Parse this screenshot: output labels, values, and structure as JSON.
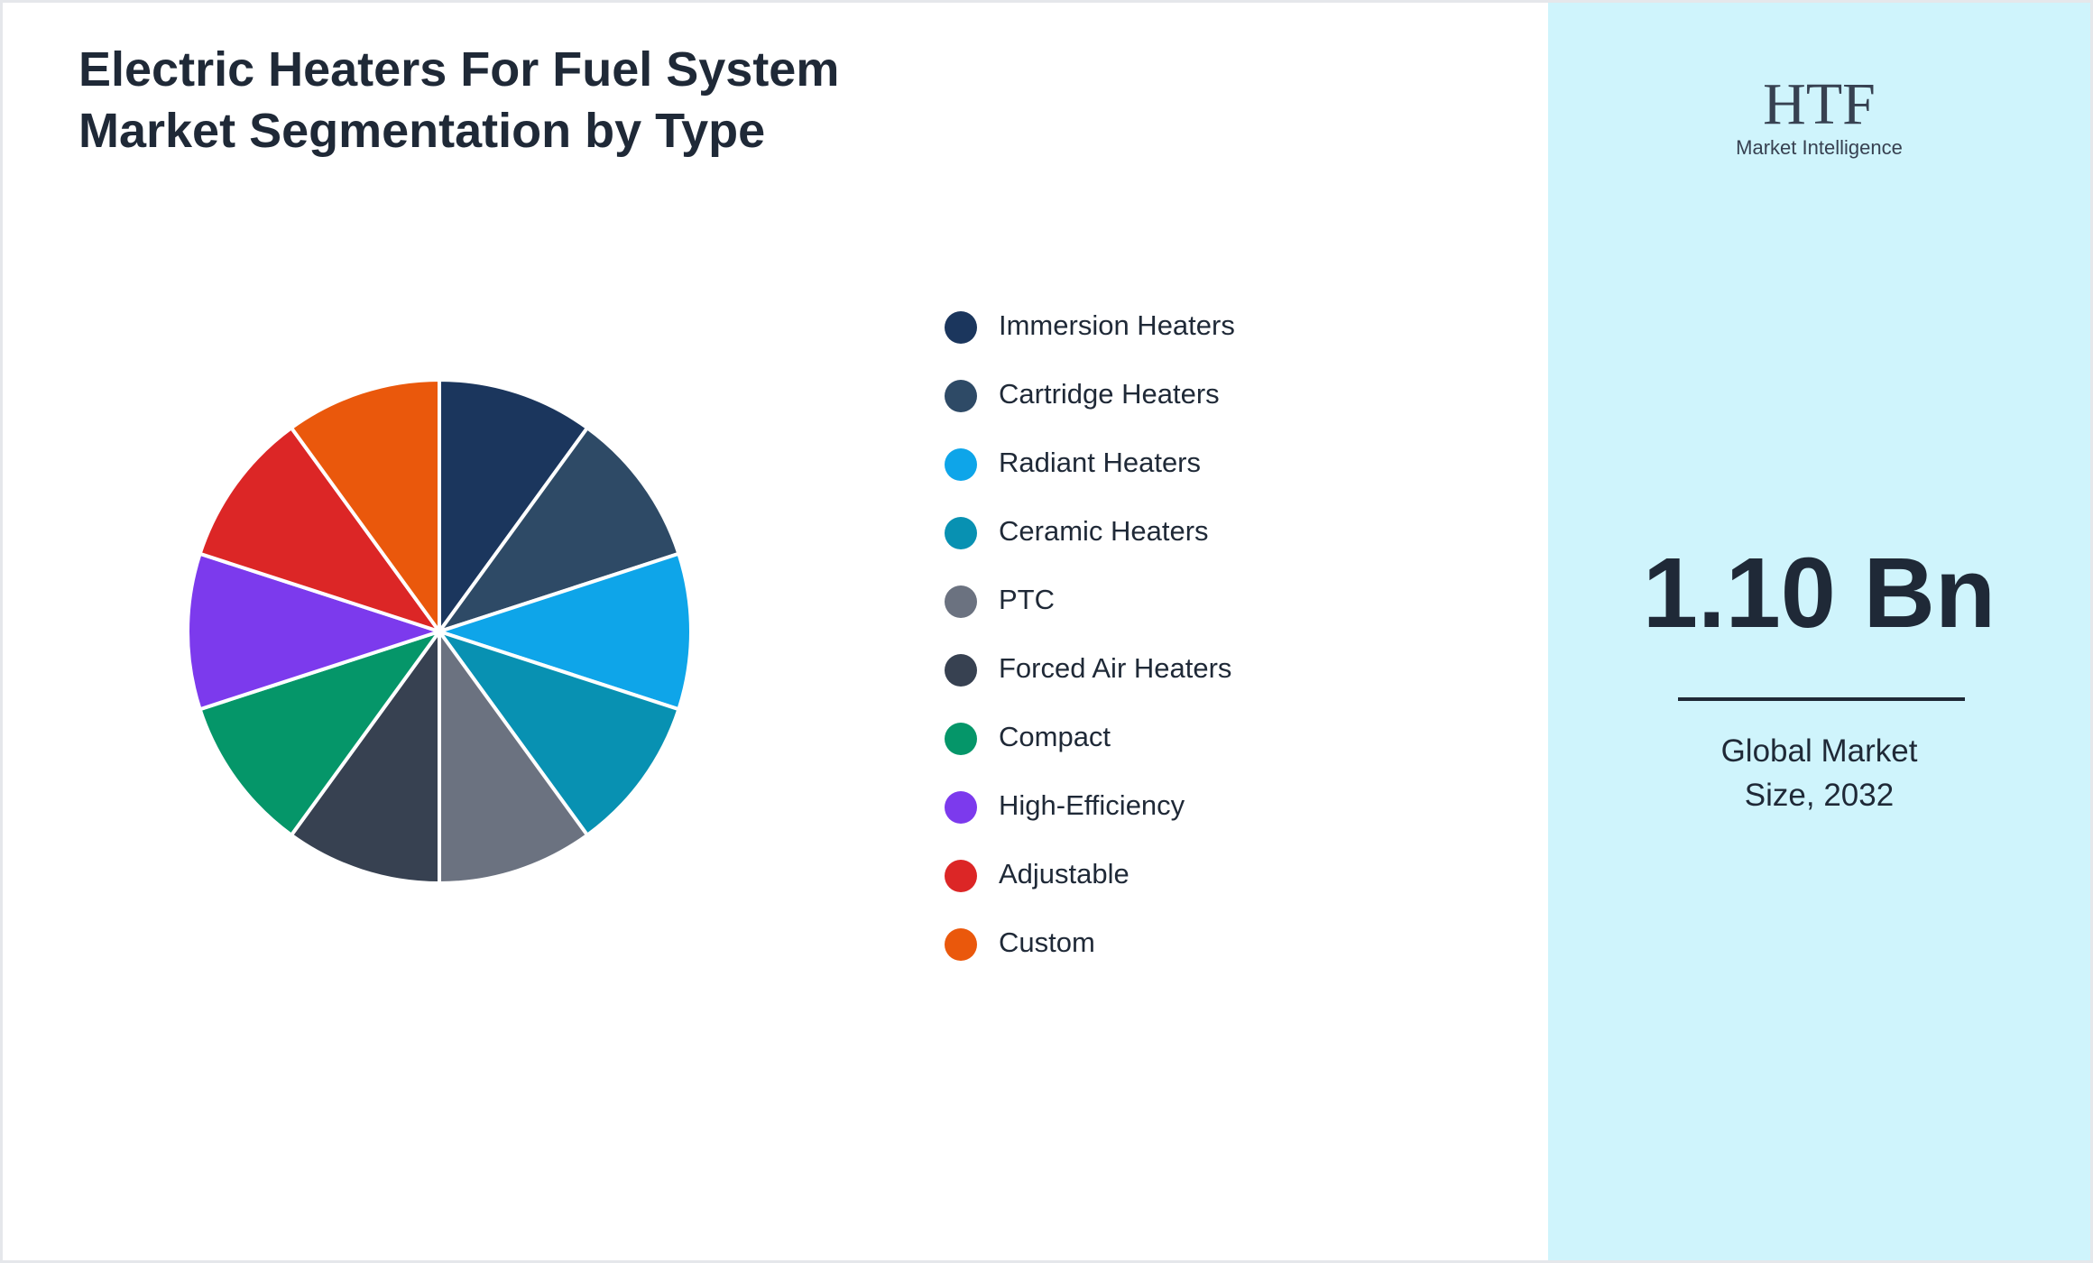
{
  "chart_data": {
    "type": "pie",
    "title": "Electric Heaters For Fuel System Market Segmentation by Type",
    "categories": [
      "Immersion Heaters",
      "Cartridge Heaters",
      "Radiant Heaters",
      "Ceramic Heaters",
      "PTC",
      "Forced Air Heaters",
      "Compact",
      "High-Efficiency",
      "Adjustable",
      "Custom"
    ],
    "values": [
      10,
      10,
      10,
      10,
      10,
      10,
      10,
      10,
      10,
      10
    ],
    "colors": [
      "#1b365d",
      "#2e4a66",
      "#0ea5e9",
      "#0891b2",
      "#6b7280",
      "#374151",
      "#059669",
      "#7c3aed",
      "#dc2626",
      "#ea580c"
    ]
  },
  "panel": {
    "logo": "HTF",
    "logo_subtitle": "Market Intelligence",
    "value": "1.10 Bn",
    "label": "Global Market Size, 2032"
  }
}
